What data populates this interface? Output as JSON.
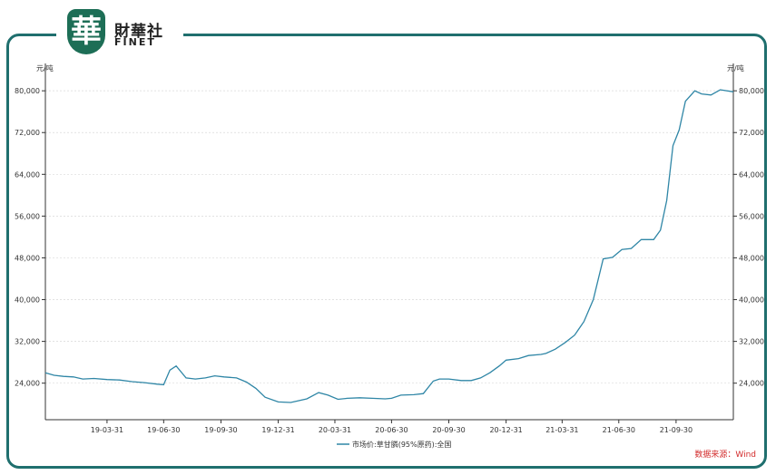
{
  "logo": {
    "cn": "財華社",
    "en": "FINET",
    "glyph": "華"
  },
  "unit_left": "元/吨",
  "unit_right": "元/吨",
  "source": "数据来源：Wind",
  "colors": {
    "line": "#2f86a6",
    "frame": "#1f6f6e",
    "source": "#d22a2a"
  },
  "chart_data": {
    "type": "line",
    "title": "",
    "xlabel": "",
    "ylabel": "元/吨",
    "ylim": [
      17000,
      83500
    ],
    "yticks": [
      24000,
      32000,
      40000,
      48000,
      56000,
      64000,
      72000,
      80000
    ],
    "ytick_labels": [
      "24,000",
      "32,000",
      "40,000",
      "48,000",
      "56,000",
      "64,000",
      "72,000",
      "80,000"
    ],
    "xlim": [
      "2018-12-22",
      "2021-12-31"
    ],
    "xticks": [
      "2019-03-31",
      "2019-06-30",
      "2019-09-30",
      "2019-12-31",
      "2020-03-31",
      "2020-06-30",
      "2020-09-30",
      "2020-12-31",
      "2021-03-31",
      "2021-06-30",
      "2021-09-30"
    ],
    "xtick_labels": [
      "19-03-31",
      "19-06-30",
      "19-09-30",
      "19-12-31",
      "20-03-31",
      "20-06-30",
      "20-09-30",
      "20-12-31",
      "21-03-31",
      "21-06-30",
      "21-09-30"
    ],
    "grid": true,
    "legend_position": "bottom-center",
    "series": [
      {
        "name": "市场价:草甘膦(95%原药):全国",
        "x": [
          "2018-12-22",
          "2019-01-05",
          "2019-01-20",
          "2019-02-05",
          "2019-02-20",
          "2019-03-10",
          "2019-03-31",
          "2019-04-20",
          "2019-05-10",
          "2019-05-30",
          "2019-06-20",
          "2019-06-30",
          "2019-07-10",
          "2019-07-20",
          "2019-08-05",
          "2019-08-20",
          "2019-09-05",
          "2019-09-20",
          "2019-10-05",
          "2019-10-25",
          "2019-11-10",
          "2019-11-25",
          "2019-12-10",
          "2019-12-31",
          "2020-01-20",
          "2020-02-15",
          "2020-03-05",
          "2020-03-20",
          "2020-04-05",
          "2020-04-20",
          "2020-05-10",
          "2020-05-30",
          "2020-06-20",
          "2020-06-30",
          "2020-07-15",
          "2020-08-05",
          "2020-08-20",
          "2020-09-05",
          "2020-09-15",
          "2020-09-30",
          "2020-10-20",
          "2020-11-05",
          "2020-11-20",
          "2020-12-05",
          "2020-12-20",
          "2020-12-31",
          "2021-01-20",
          "2021-02-05",
          "2021-02-25",
          "2021-03-05",
          "2021-03-20",
          "2021-04-05",
          "2021-04-20",
          "2021-05-05",
          "2021-05-20",
          "2021-06-05",
          "2021-06-20",
          "2021-07-05",
          "2021-07-20",
          "2021-08-05",
          "2021-08-15",
          "2021-08-25",
          "2021-09-05",
          "2021-09-15",
          "2021-09-25",
          "2021-10-05",
          "2021-10-15",
          "2021-10-30",
          "2021-11-10",
          "2021-11-25",
          "2021-12-10",
          "2021-12-31"
        ],
        "values": [
          26000,
          25500,
          25300,
          25200,
          24800,
          24900,
          24700,
          24600,
          24300,
          24100,
          23800,
          23700,
          26500,
          27300,
          25000,
          24800,
          25000,
          25400,
          25200,
          25000,
          24200,
          23000,
          21300,
          20400,
          20300,
          21000,
          22200,
          21700,
          20900,
          21100,
          21200,
          21100,
          21000,
          21100,
          21700,
          21800,
          22000,
          24400,
          24800,
          24800,
          24500,
          24500,
          25000,
          26000,
          27300,
          28400,
          28700,
          29300,
          29500,
          29700,
          30500,
          31800,
          33200,
          35800,
          40000,
          47800,
          48100,
          49600,
          49800,
          51500,
          51500,
          51500,
          53300,
          59000,
          69500,
          72500,
          78000,
          80000,
          79400,
          79200,
          80200,
          79800
        ]
      }
    ]
  }
}
